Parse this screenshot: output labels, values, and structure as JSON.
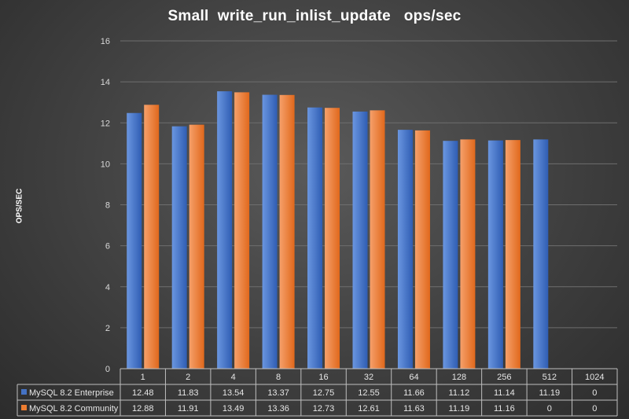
{
  "chart_data": {
    "type": "bar",
    "title": "Small  write_run_inlist_update   ops/sec",
    "xlabel": "",
    "ylabel": "OPS/SEC",
    "ylim": [
      0,
      16
    ],
    "yticks": [
      0,
      2,
      4,
      6,
      8,
      10,
      12,
      14,
      16
    ],
    "grid": true,
    "legend": "data-table",
    "categories": [
      "1",
      "2",
      "4",
      "8",
      "16",
      "32",
      "64",
      "128",
      "256",
      "512",
      "1024"
    ],
    "series": [
      {
        "name": "MySQL 8.2 Enterprise",
        "color": "#4472c4",
        "values": [
          12.48,
          11.83,
          13.54,
          13.37,
          12.75,
          12.55,
          11.66,
          11.12,
          11.14,
          11.19,
          0
        ]
      },
      {
        "name": "MySQL 8.2 Community",
        "color": "#ed7d31",
        "values": [
          12.88,
          11.91,
          13.49,
          13.36,
          12.73,
          12.61,
          11.63,
          11.19,
          11.16,
          0,
          0
        ]
      }
    ]
  }
}
